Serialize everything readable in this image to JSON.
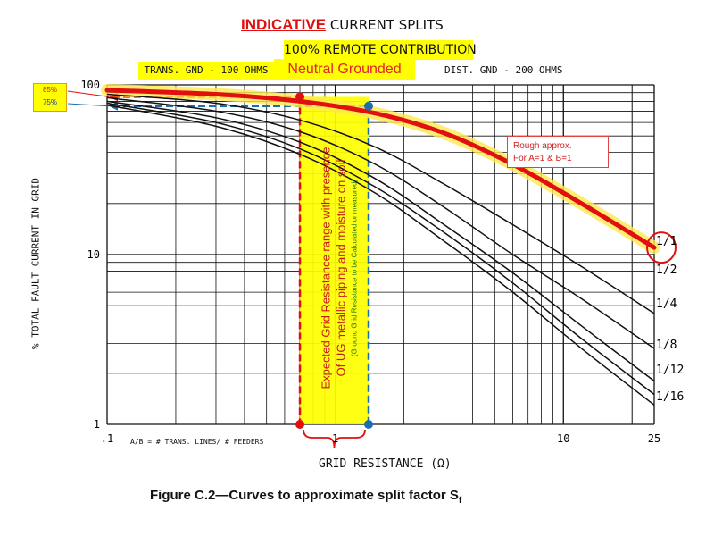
{
  "chart_data": {
    "type": "line",
    "title_highlight": "INDICATIVE",
    "title_rest": "CURRENT SPLITS",
    "subtitle": "100% REMOTE CONTRIBUTION",
    "neutral_label": "Neutral Grounded",
    "trans_gnd": "TRANS. GND - 100 OHMS",
    "dist_gnd": "DIST. GND - 200 OHMS",
    "ylabel": "% TOTAL FAULT CURRENT IN GRID",
    "xlabel": "GRID RESISTANCE (Ω)",
    "caption_main": "Figure C.2—Curves to approximate split factor S",
    "caption_sub": "f",
    "ab_note": "A/B = # TRANS. LINES/ # FEEDERS",
    "x_scale": "log",
    "y_scale": "log",
    "xlim": [
      0.1,
      25
    ],
    "ylim": [
      1,
      100
    ],
    "x_ticks": [
      {
        "value": 0.1,
        "label": ".1"
      },
      {
        "value": 1,
        "label": "1"
      },
      {
        "value": 10,
        "label": "10"
      },
      {
        "value": 25,
        "label": "25"
      }
    ],
    "y_ticks": [
      {
        "value": 1,
        "label": "1"
      },
      {
        "value": 10,
        "label": "10"
      },
      {
        "value": 100,
        "label": "100"
      }
    ],
    "series": [
      {
        "name": "1/1",
        "x": [
          0.1,
          0.3,
          0.7,
          1.5,
          3,
          6,
          12,
          25
        ],
        "y": [
          93,
          88,
          80,
          68,
          52,
          34,
          20,
          11
        ]
      },
      {
        "name": "1/2",
        "x": [
          0.1,
          0.3,
          0.7,
          1.5,
          3,
          6,
          12,
          25
        ],
        "y": [
          88,
          78,
          62,
          43,
          26,
          15,
          8.5,
          4.5
        ]
      },
      {
        "name": "1/4",
        "x": [
          0.1,
          0.3,
          0.7,
          1.5,
          3,
          6,
          12,
          25
        ],
        "y": [
          84,
          70,
          53,
          34,
          19,
          10,
          5.5,
          2.8
        ]
      },
      {
        "name": "1/8",
        "x": [
          0.1,
          0.3,
          0.7,
          1.5,
          3,
          6,
          12,
          25
        ],
        "y": [
          80,
          64,
          46,
          28,
          15,
          7.8,
          3.8,
          1.8
        ]
      },
      {
        "name": "1/12",
        "x": [
          0.1,
          0.3,
          0.7,
          1.5,
          3,
          6,
          12,
          25
        ],
        "y": [
          78,
          60,
          42,
          25,
          13.5,
          6.8,
          3.2,
          1.5
        ]
      },
      {
        "name": "1/16",
        "x": [
          0.1,
          0.3,
          0.7,
          1.5,
          3,
          6,
          12,
          25
        ],
        "y": [
          76,
          57,
          39,
          23,
          12,
          6,
          2.8,
          1.3
        ]
      }
    ],
    "annotations": {
      "rough_line1": "Rough approx.",
      "rough_line2": "For A=1 & B=1",
      "pct85": "85%",
      "pct75": "75%",
      "range_line1": "Expected Grid Resistance range with presence",
      "range_line2": "Of UG metallic piping and moisture on soil",
      "range_line3": "(Ground Grid Resistance to be Calculated or measured)",
      "range_x_low": 0.7,
      "range_x_high": 1.4,
      "y_at_low": 85,
      "y_at_high": 75
    },
    "colors": {
      "highlight": "#ffff00",
      "red": "#e01010",
      "blue": "#1a6fb0",
      "grid": "#111111"
    }
  }
}
